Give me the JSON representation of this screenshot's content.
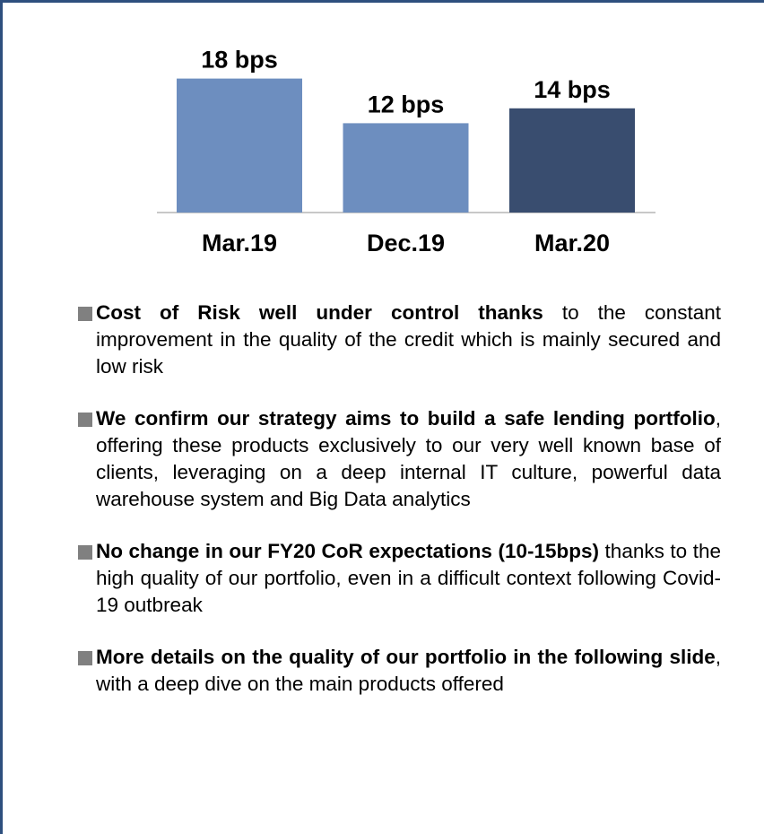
{
  "chart_data": {
    "type": "bar",
    "categories": [
      "Mar.19",
      "Dec.19",
      "Mar.20"
    ],
    "values": [
      18,
      12,
      14
    ],
    "value_labels": [
      "18 bps",
      "12 bps",
      "14 bps"
    ],
    "colors": [
      "#6d8ebf",
      "#6d8ebf",
      "#394d6f"
    ]
  },
  "bullets": [
    {
      "bold": "Cost of Risk well under control thanks",
      "text": " to the constant improvement in the quality of the credit which is mainly secured and low risk"
    },
    {
      "bold": "We confirm our strategy aims to build a safe lending portfolio",
      "text": ", offering these products exclusively to our very well known base of clients, leveraging on a deep internal IT culture, powerful data warehouse system and Big Data analytics"
    },
    {
      "bold": "No change in our FY20 CoR expectations (10-15bps)",
      "text": " thanks to the high quality of our portfolio, even in a difficult context following Covid-19 outbreak"
    },
    {
      "bold": "More details on the quality of our portfolio in the following slide",
      "text": ", with a deep dive on the main products offered"
    }
  ]
}
